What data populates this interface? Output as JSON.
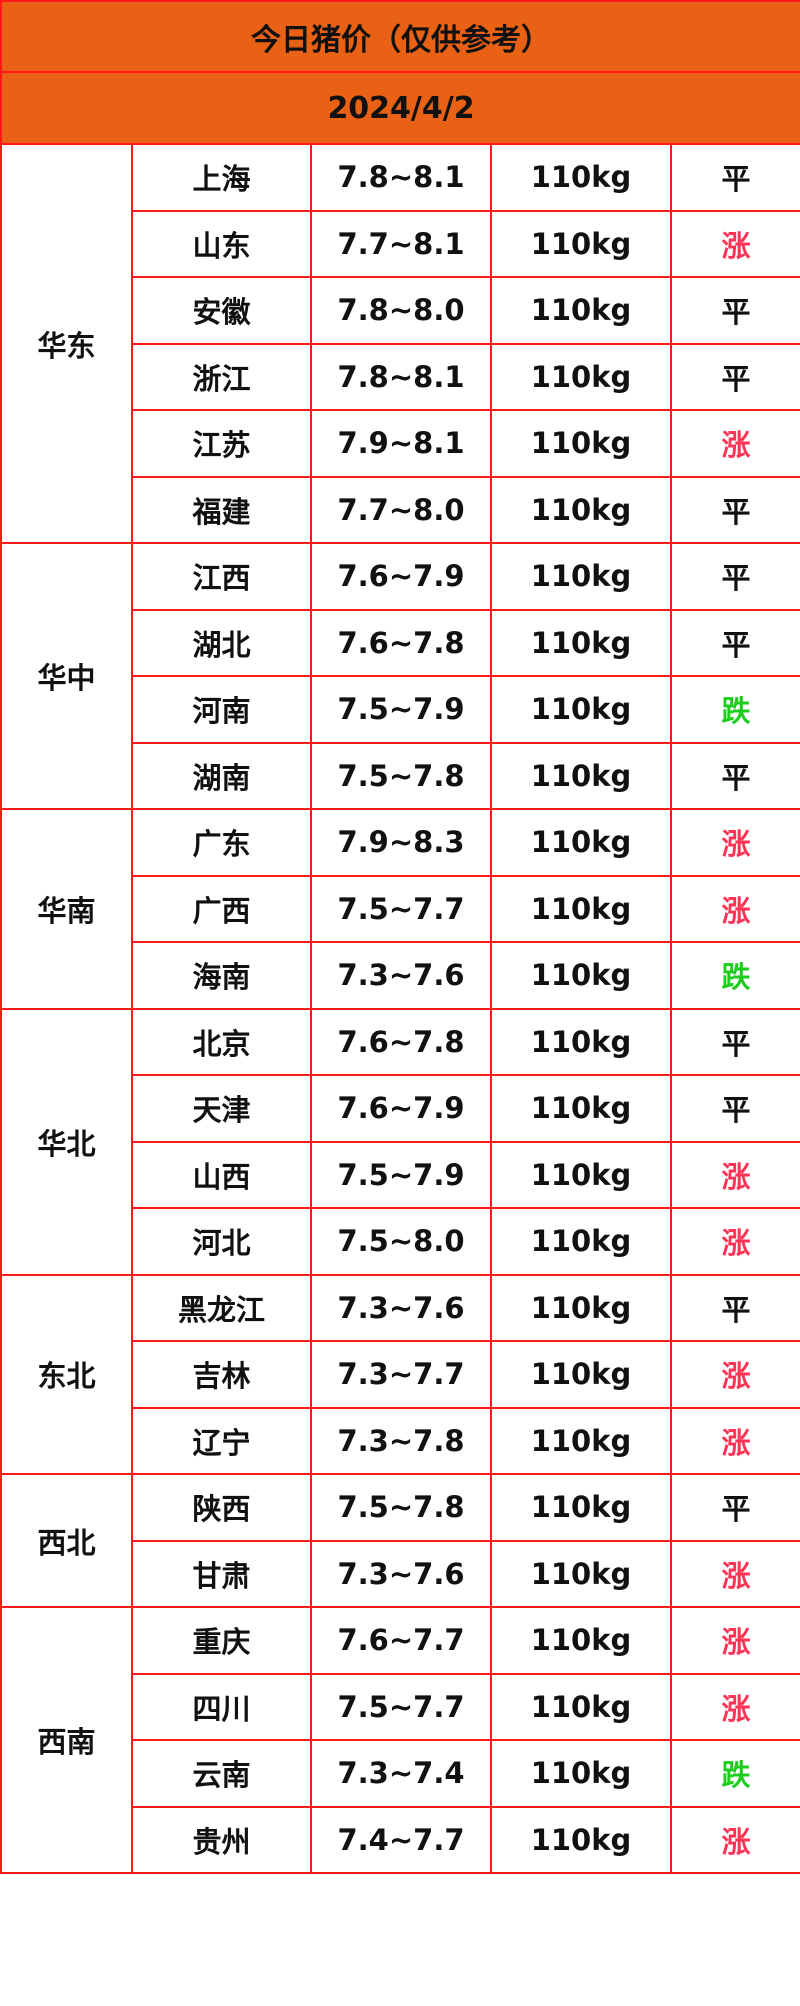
{
  "title": "今日猪价（仅供参考）",
  "date": "2024/4/2",
  "colors": {
    "header_bg": "#e96114",
    "border": "#ff1a1a",
    "up": "#ff3355",
    "down": "#1dcc1d",
    "flat": "#111111"
  },
  "regions": [
    {
      "name": "华东",
      "rows": [
        {
          "province": "上海",
          "price": "7.8~8.1",
          "weight": "110kg",
          "trend": "平"
        },
        {
          "province": "山东",
          "price": "7.7~8.1",
          "weight": "110kg",
          "trend": "涨"
        },
        {
          "province": "安徽",
          "price": "7.8~8.0",
          "weight": "110kg",
          "trend": "平"
        },
        {
          "province": "浙江",
          "price": "7.8~8.1",
          "weight": "110kg",
          "trend": "平"
        },
        {
          "province": "江苏",
          "price": "7.9~8.1",
          "weight": "110kg",
          "trend": "涨"
        },
        {
          "province": "福建",
          "price": "7.7~8.0",
          "weight": "110kg",
          "trend": "平"
        }
      ]
    },
    {
      "name": "华中",
      "rows": [
        {
          "province": "江西",
          "price": "7.6~7.9",
          "weight": "110kg",
          "trend": "平"
        },
        {
          "province": "湖北",
          "price": "7.6~7.8",
          "weight": "110kg",
          "trend": "平"
        },
        {
          "province": "河南",
          "price": "7.5~7.9",
          "weight": "110kg",
          "trend": "跌"
        },
        {
          "province": "湖南",
          "price": "7.5~7.8",
          "weight": "110kg",
          "trend": "平"
        }
      ]
    },
    {
      "name": "华南",
      "rows": [
        {
          "province": "广东",
          "price": "7.9~8.3",
          "weight": "110kg",
          "trend": "涨"
        },
        {
          "province": "广西",
          "price": "7.5~7.7",
          "weight": "110kg",
          "trend": "涨"
        },
        {
          "province": "海南",
          "price": "7.3~7.6",
          "weight": "110kg",
          "trend": "跌"
        }
      ]
    },
    {
      "name": "华北",
      "rows": [
        {
          "province": "北京",
          "price": "7.6~7.8",
          "weight": "110kg",
          "trend": "平"
        },
        {
          "province": "天津",
          "price": "7.6~7.9",
          "weight": "110kg",
          "trend": "平"
        },
        {
          "province": "山西",
          "price": "7.5~7.9",
          "weight": "110kg",
          "trend": "涨"
        },
        {
          "province": "河北",
          "price": "7.5~8.0",
          "weight": "110kg",
          "trend": "涨"
        }
      ]
    },
    {
      "name": "东北",
      "rows": [
        {
          "province": "黑龙江",
          "price": "7.3~7.6",
          "weight": "110kg",
          "trend": "平"
        },
        {
          "province": "吉林",
          "price": "7.3~7.7",
          "weight": "110kg",
          "trend": "涨"
        },
        {
          "province": "辽宁",
          "price": "7.3~7.8",
          "weight": "110kg",
          "trend": "涨"
        }
      ]
    },
    {
      "name": "西北",
      "rows": [
        {
          "province": "陕西",
          "price": "7.5~7.8",
          "weight": "110kg",
          "trend": "平"
        },
        {
          "province": "甘肃",
          "price": "7.3~7.6",
          "weight": "110kg",
          "trend": "涨"
        }
      ]
    },
    {
      "name": "西南",
      "rows": [
        {
          "province": "重庆",
          "price": "7.6~7.7",
          "weight": "110kg",
          "trend": "涨"
        },
        {
          "province": "四川",
          "price": "7.5~7.7",
          "weight": "110kg",
          "trend": "涨"
        },
        {
          "province": "云南",
          "price": "7.3~7.4",
          "weight": "110kg",
          "trend": "跌"
        },
        {
          "province": "贵州",
          "price": "7.4~7.7",
          "weight": "110kg",
          "trend": "涨"
        }
      ]
    }
  ]
}
